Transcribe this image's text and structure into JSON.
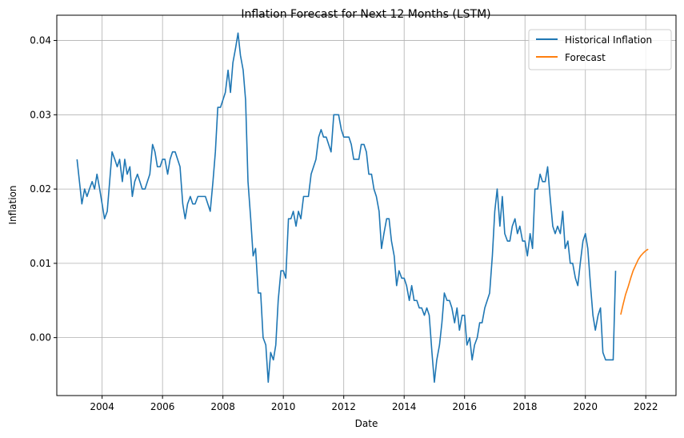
{
  "chart_data": {
    "type": "line",
    "title": "Inflation Forecast for Next 12 Months (LSTM)",
    "xlabel": "Date",
    "ylabel": "Inflation",
    "xlim": [
      2002.5,
      2023.0
    ],
    "ylim": [
      -0.0078,
      0.0434
    ],
    "x_ticks": [
      2004,
      2006,
      2008,
      2010,
      2012,
      2014,
      2016,
      2018,
      2020,
      2022
    ],
    "x_tick_labels": [
      "2004",
      "2006",
      "2008",
      "2010",
      "2012",
      "2014",
      "2016",
      "2018",
      "2020",
      "2022"
    ],
    "y_ticks": [
      0.0,
      0.01,
      0.02,
      0.03,
      0.04
    ],
    "y_tick_labels": [
      "0.00",
      "0.01",
      "0.02",
      "0.03",
      "0.04"
    ],
    "grid": true,
    "legend_position": "top-right",
    "series": [
      {
        "name": "Historical Inflation",
        "color": "#1f77b4",
        "points": [
          [
            2003.17,
            0.024
          ],
          [
            2003.25,
            0.021
          ],
          [
            2003.33,
            0.018
          ],
          [
            2003.42,
            0.02
          ],
          [
            2003.5,
            0.019
          ],
          [
            2003.58,
            0.02
          ],
          [
            2003.67,
            0.021
          ],
          [
            2003.75,
            0.02
          ],
          [
            2003.83,
            0.022
          ],
          [
            2003.92,
            0.02
          ],
          [
            2004.0,
            0.018
          ],
          [
            2004.08,
            0.016
          ],
          [
            2004.17,
            0.017
          ],
          [
            2004.25,
            0.021
          ],
          [
            2004.33,
            0.025
          ],
          [
            2004.42,
            0.024
          ],
          [
            2004.5,
            0.023
          ],
          [
            2004.58,
            0.024
          ],
          [
            2004.67,
            0.021
          ],
          [
            2004.75,
            0.024
          ],
          [
            2004.83,
            0.022
          ],
          [
            2004.92,
            0.023
          ],
          [
            2005.0,
            0.019
          ],
          [
            2005.08,
            0.021
          ],
          [
            2005.17,
            0.022
          ],
          [
            2005.25,
            0.021
          ],
          [
            2005.33,
            0.02
          ],
          [
            2005.42,
            0.02
          ],
          [
            2005.5,
            0.021
          ],
          [
            2005.58,
            0.022
          ],
          [
            2005.67,
            0.026
          ],
          [
            2005.75,
            0.025
          ],
          [
            2005.83,
            0.023
          ],
          [
            2005.92,
            0.023
          ],
          [
            2006.0,
            0.024
          ],
          [
            2006.08,
            0.024
          ],
          [
            2006.17,
            0.022
          ],
          [
            2006.25,
            0.024
          ],
          [
            2006.33,
            0.025
          ],
          [
            2006.42,
            0.025
          ],
          [
            2006.5,
            0.024
          ],
          [
            2006.58,
            0.023
          ],
          [
            2006.67,
            0.018
          ],
          [
            2006.75,
            0.016
          ],
          [
            2006.83,
            0.018
          ],
          [
            2006.92,
            0.019
          ],
          [
            2007.0,
            0.018
          ],
          [
            2007.08,
            0.018
          ],
          [
            2007.17,
            0.019
          ],
          [
            2007.25,
            0.019
          ],
          [
            2007.33,
            0.019
          ],
          [
            2007.42,
            0.019
          ],
          [
            2007.5,
            0.018
          ],
          [
            2007.58,
            0.017
          ],
          [
            2007.67,
            0.021
          ],
          [
            2007.75,
            0.025
          ],
          [
            2007.83,
            0.031
          ],
          [
            2007.92,
            0.031
          ],
          [
            2008.0,
            0.032
          ],
          [
            2008.08,
            0.033
          ],
          [
            2008.17,
            0.036
          ],
          [
            2008.25,
            0.033
          ],
          [
            2008.33,
            0.037
          ],
          [
            2008.42,
            0.039
          ],
          [
            2008.5,
            0.041
          ],
          [
            2008.58,
            0.038
          ],
          [
            2008.67,
            0.036
          ],
          [
            2008.75,
            0.032
          ],
          [
            2008.83,
            0.021
          ],
          [
            2008.92,
            0.016
          ],
          [
            2009.0,
            0.011
          ],
          [
            2009.08,
            0.012
          ],
          [
            2009.17,
            0.006
          ],
          [
            2009.25,
            0.006
          ],
          [
            2009.33,
            0.0
          ],
          [
            2009.42,
            -0.001
          ],
          [
            2009.5,
            -0.006
          ],
          [
            2009.58,
            -0.002
          ],
          [
            2009.67,
            -0.003
          ],
          [
            2009.75,
            -0.001
          ],
          [
            2009.83,
            0.005
          ],
          [
            2009.92,
            0.009
          ],
          [
            2010.0,
            0.009
          ],
          [
            2010.08,
            0.008
          ],
          [
            2010.17,
            0.016
          ],
          [
            2010.25,
            0.016
          ],
          [
            2010.33,
            0.017
          ],
          [
            2010.42,
            0.015
          ],
          [
            2010.5,
            0.017
          ],
          [
            2010.58,
            0.016
          ],
          [
            2010.67,
            0.019
          ],
          [
            2010.75,
            0.019
          ],
          [
            2010.83,
            0.019
          ],
          [
            2010.92,
            0.022
          ],
          [
            2011.0,
            0.023
          ],
          [
            2011.08,
            0.024
          ],
          [
            2011.17,
            0.027
          ],
          [
            2011.25,
            0.028
          ],
          [
            2011.33,
            0.027
          ],
          [
            2011.42,
            0.027
          ],
          [
            2011.5,
            0.026
          ],
          [
            2011.58,
            0.025
          ],
          [
            2011.67,
            0.03
          ],
          [
            2011.75,
            0.03
          ],
          [
            2011.83,
            0.03
          ],
          [
            2011.92,
            0.028
          ],
          [
            2012.0,
            0.027
          ],
          [
            2012.08,
            0.027
          ],
          [
            2012.17,
            0.027
          ],
          [
            2012.25,
            0.026
          ],
          [
            2012.33,
            0.024
          ],
          [
            2012.42,
            0.024
          ],
          [
            2012.5,
            0.024
          ],
          [
            2012.58,
            0.026
          ],
          [
            2012.67,
            0.026
          ],
          [
            2012.75,
            0.025
          ],
          [
            2012.83,
            0.022
          ],
          [
            2012.92,
            0.022
          ],
          [
            2013.0,
            0.02
          ],
          [
            2013.08,
            0.019
          ],
          [
            2013.17,
            0.017
          ],
          [
            2013.25,
            0.012
          ],
          [
            2013.33,
            0.014
          ],
          [
            2013.42,
            0.016
          ],
          [
            2013.5,
            0.016
          ],
          [
            2013.58,
            0.013
          ],
          [
            2013.67,
            0.011
          ],
          [
            2013.75,
            0.007
          ],
          [
            2013.83,
            0.009
          ],
          [
            2013.92,
            0.008
          ],
          [
            2014.0,
            0.008
          ],
          [
            2014.08,
            0.007
          ],
          [
            2014.17,
            0.005
          ],
          [
            2014.25,
            0.007
          ],
          [
            2014.33,
            0.005
          ],
          [
            2014.42,
            0.005
          ],
          [
            2014.5,
            0.004
          ],
          [
            2014.58,
            0.004
          ],
          [
            2014.67,
            0.003
          ],
          [
            2014.75,
            0.004
          ],
          [
            2014.83,
            0.003
          ],
          [
            2014.92,
            -0.002
          ],
          [
            2015.0,
            -0.006
          ],
          [
            2015.08,
            -0.003
          ],
          [
            2015.17,
            -0.001
          ],
          [
            2015.25,
            0.002
          ],
          [
            2015.33,
            0.006
          ],
          [
            2015.42,
            0.005
          ],
          [
            2015.5,
            0.005
          ],
          [
            2015.58,
            0.004
          ],
          [
            2015.67,
            0.002
          ],
          [
            2015.75,
            0.004
          ],
          [
            2015.83,
            0.001
          ],
          [
            2015.92,
            0.003
          ],
          [
            2016.0,
            0.003
          ],
          [
            2016.08,
            -0.001
          ],
          [
            2016.17,
            0.0
          ],
          [
            2016.25,
            -0.003
          ],
          [
            2016.33,
            -0.001
          ],
          [
            2016.42,
            0.0
          ],
          [
            2016.5,
            0.002
          ],
          [
            2016.58,
            0.002
          ],
          [
            2016.67,
            0.004
          ],
          [
            2016.75,
            0.005
          ],
          [
            2016.83,
            0.006
          ],
          [
            2016.92,
            0.011
          ],
          [
            2017.0,
            0.017
          ],
          [
            2017.08,
            0.02
          ],
          [
            2017.17,
            0.015
          ],
          [
            2017.25,
            0.019
          ],
          [
            2017.33,
            0.014
          ],
          [
            2017.42,
            0.013
          ],
          [
            2017.5,
            0.013
          ],
          [
            2017.58,
            0.015
          ],
          [
            2017.67,
            0.016
          ],
          [
            2017.75,
            0.014
          ],
          [
            2017.83,
            0.015
          ],
          [
            2017.92,
            0.013
          ],
          [
            2018.0,
            0.013
          ],
          [
            2018.08,
            0.011
          ],
          [
            2018.17,
            0.014
          ],
          [
            2018.25,
            0.012
          ],
          [
            2018.33,
            0.02
          ],
          [
            2018.42,
            0.02
          ],
          [
            2018.5,
            0.022
          ],
          [
            2018.58,
            0.021
          ],
          [
            2018.67,
            0.021
          ],
          [
            2018.75,
            0.023
          ],
          [
            2018.83,
            0.019
          ],
          [
            2018.92,
            0.015
          ],
          [
            2019.0,
            0.014
          ],
          [
            2019.08,
            0.015
          ],
          [
            2019.17,
            0.014
          ],
          [
            2019.25,
            0.017
          ],
          [
            2019.33,
            0.012
          ],
          [
            2019.42,
            0.013
          ],
          [
            2019.5,
            0.01
          ],
          [
            2019.58,
            0.01
          ],
          [
            2019.67,
            0.008
          ],
          [
            2019.75,
            0.007
          ],
          [
            2019.83,
            0.01
          ],
          [
            2019.92,
            0.013
          ],
          [
            2020.0,
            0.014
          ],
          [
            2020.08,
            0.012
          ],
          [
            2020.17,
            0.007
          ],
          [
            2020.25,
            0.003
          ],
          [
            2020.33,
            0.001
          ],
          [
            2020.42,
            0.003
          ],
          [
            2020.5,
            0.004
          ],
          [
            2020.58,
            -0.002
          ],
          [
            2020.67,
            -0.003
          ],
          [
            2020.75,
            -0.003
          ],
          [
            2020.83,
            -0.003
          ],
          [
            2020.92,
            -0.003
          ],
          [
            2021.0,
            0.009
          ]
        ]
      },
      {
        "name": "Forecast",
        "color": "#ff7f0e",
        "points": [
          [
            2021.17,
            0.0031
          ],
          [
            2021.25,
            0.0045
          ],
          [
            2021.33,
            0.0058
          ],
          [
            2021.42,
            0.0069
          ],
          [
            2021.5,
            0.008
          ],
          [
            2021.58,
            0.009
          ],
          [
            2021.67,
            0.0098
          ],
          [
            2021.75,
            0.0105
          ],
          [
            2021.83,
            0.011
          ],
          [
            2021.92,
            0.0114
          ],
          [
            2022.0,
            0.0117
          ],
          [
            2022.08,
            0.0119
          ]
        ]
      }
    ]
  }
}
